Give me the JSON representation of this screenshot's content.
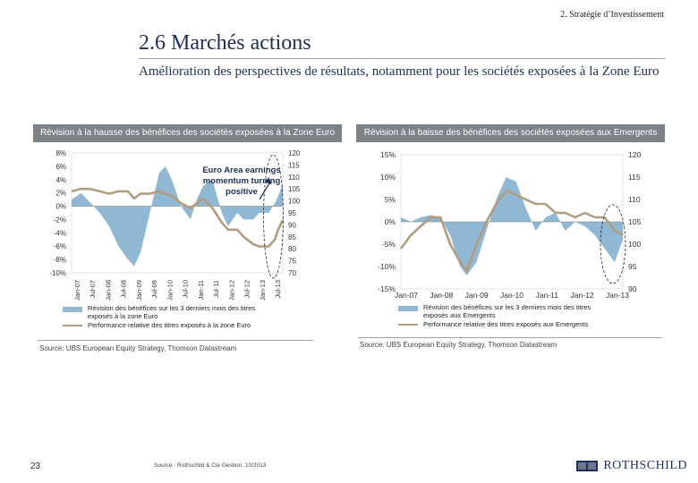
{
  "header": {
    "section": "2. Stratégie d’Investissement",
    "title": "2.6 Marchés actions",
    "subtitle": "Amélioration des perspectives de résultats, notamment pour les sociétés exposées à la Zone Euro"
  },
  "panels": [
    {
      "title": "Révision à la hausse des bénéfices des sociétés exposées à la Zone Euro",
      "annotation_lines": [
        "Euro Area earnings",
        "momentum turning",
        "positive"
      ],
      "legend": [
        "Révision des bénéfices sur les 3 derniers mois des titres exposés à la zone Euro",
        "Performance relative des titres exposés à la zone Euro"
      ],
      "source": "Source: UBS European Equity Strategy, Thomson Datastream"
    },
    {
      "title": "Révision à la baisse des bénéfices des sociétés exposées aux Emergents",
      "legend": [
        "Révision des bénéfices sur les 3 derniers mois des titres exposés aux Emergents",
        "Performance relative des titres exposés aux Emergents"
      ],
      "source": "Source: UBS European Equity Strategy, Thomson Datastream"
    }
  ],
  "footer": {
    "page_number": "23",
    "source": "Source : Rothschild & Cie Gestion. 10/2013",
    "logo": "ROTHSCHILD"
  },
  "colors": {
    "revision": "#8eb8d3",
    "performance": "#b39c7e",
    "header_bar": "#7d818a",
    "text": "#1e2f55"
  },
  "chart_data": [
    {
      "type": "area",
      "title": "Révision à la hausse des bénéfices des sociétés exposées à la Zone Euro",
      "x_ticks": [
        "Jan-07",
        "Jul-07",
        "Jan-08",
        "Jul-08",
        "Jan-09",
        "Jul-09",
        "Jan-10",
        "Jul-10",
        "Jan-11",
        "Jul-11",
        "Jan-12",
        "Jul-12",
        "Jan-13",
        "Jul-13"
      ],
      "x_range": [
        2007.0,
        2013.75
      ],
      "left_axis": {
        "ticks": [
          "8%",
          "6%",
          "4%",
          "2%",
          "0%",
          "-2%",
          "-4%",
          "-6%",
          "-8%",
          "-10%"
        ],
        "range": [
          -10,
          8
        ]
      },
      "right_axis": {
        "ticks": [
          "120",
          "115",
          "110",
          "105",
          "100",
          "95",
          "90",
          "85",
          "80",
          "75",
          "70"
        ],
        "range": [
          70,
          120
        ]
      },
      "series": [
        {
          "name": "Révision des bénéfices sur les 3 derniers mois des titres exposés à la zone Euro",
          "axis": "left",
          "style": "area",
          "x": [
            2007.0,
            2007.3,
            2007.6,
            2007.9,
            2008.2,
            2008.5,
            2008.8,
            2009.0,
            2009.2,
            2009.5,
            2009.8,
            2010.0,
            2010.2,
            2010.5,
            2010.8,
            2011.0,
            2011.2,
            2011.5,
            2011.8,
            2012.0,
            2012.3,
            2012.5,
            2012.8,
            2013.0,
            2013.3,
            2013.5,
            2013.6,
            2013.75
          ],
          "values": [
            1,
            2,
            0.5,
            -1,
            -3,
            -6,
            -8,
            -9,
            -7,
            -1,
            5,
            6,
            4,
            0,
            -2,
            1,
            3,
            4,
            -1,
            -3,
            -1,
            -2,
            -2,
            -1,
            -1,
            0.5,
            1.5,
            3.5
          ]
        },
        {
          "name": "Performance relative des titres exposés à la zone Euro",
          "axis": "right",
          "style": "line",
          "x": [
            2007.0,
            2007.3,
            2007.6,
            2007.9,
            2008.2,
            2008.5,
            2008.8,
            2009.0,
            2009.2,
            2009.5,
            2009.8,
            2010.0,
            2010.2,
            2010.5,
            2010.8,
            2011.0,
            2011.2,
            2011.5,
            2011.8,
            2012.0,
            2012.3,
            2012.5,
            2012.8,
            2013.0,
            2013.3,
            2013.5,
            2013.6,
            2013.75
          ],
          "values": [
            104,
            105,
            105,
            104,
            103,
            104,
            104,
            101,
            103,
            103,
            104,
            103,
            102,
            99,
            97,
            99,
            101,
            97,
            91,
            88,
            88,
            85,
            82,
            81,
            81,
            84,
            88,
            92
          ]
        }
      ]
    },
    {
      "type": "area",
      "title": "Révision à la baisse des bénéfices des sociétés exposées aux Emergents",
      "x_ticks": [
        "Jan-07",
        "Jan-08",
        "Jan-09",
        "Jan-10",
        "Jan-11",
        "Jan-12",
        "Jan-13"
      ],
      "x_range": [
        2007.0,
        2013.75
      ],
      "left_axis": {
        "ticks": [
          "15%",
          "10%",
          "5%",
          "0%",
          "-5%",
          "-10%",
          "-15%"
        ],
        "range": [
          -15,
          15
        ]
      },
      "right_axis": {
        "ticks": [
          "120",
          "115",
          "110",
          "105",
          "100",
          "95",
          "90"
        ],
        "range": [
          90,
          120
        ]
      },
      "series": [
        {
          "name": "Révision des bénéfices sur les 3 derniers mois des titres exposés aux Emergents",
          "axis": "left",
          "style": "area",
          "x": [
            2007.0,
            2007.3,
            2007.6,
            2007.9,
            2008.2,
            2008.5,
            2008.8,
            2009.0,
            2009.3,
            2009.6,
            2009.9,
            2010.2,
            2010.5,
            2010.8,
            2011.1,
            2011.4,
            2011.7,
            2012.0,
            2012.3,
            2012.6,
            2012.9,
            2013.2,
            2013.5,
            2013.75
          ],
          "values": [
            1,
            0,
            1,
            1.5,
            1,
            -3,
            -10,
            -12,
            -9,
            -2,
            5,
            10,
            9,
            3,
            -2,
            1,
            2,
            -2,
            0,
            -1,
            -3,
            -6,
            -9,
            -4
          ]
        },
        {
          "name": "Performance relative des titres exposés aux Emergents",
          "axis": "right",
          "style": "line",
          "x": [
            2007.0,
            2007.3,
            2007.6,
            2007.9,
            2008.2,
            2008.5,
            2008.8,
            2009.0,
            2009.3,
            2009.6,
            2009.9,
            2010.2,
            2010.5,
            2010.8,
            2011.1,
            2011.4,
            2011.7,
            2012.0,
            2012.3,
            2012.6,
            2012.9,
            2013.2,
            2013.5,
            2013.75
          ],
          "values": [
            99,
            102,
            104,
            106,
            106,
            100,
            96,
            94,
            100,
            105,
            109,
            112,
            111,
            110,
            109,
            109,
            107,
            107,
            106,
            107,
            106,
            106,
            103,
            102
          ]
        }
      ]
    }
  ]
}
